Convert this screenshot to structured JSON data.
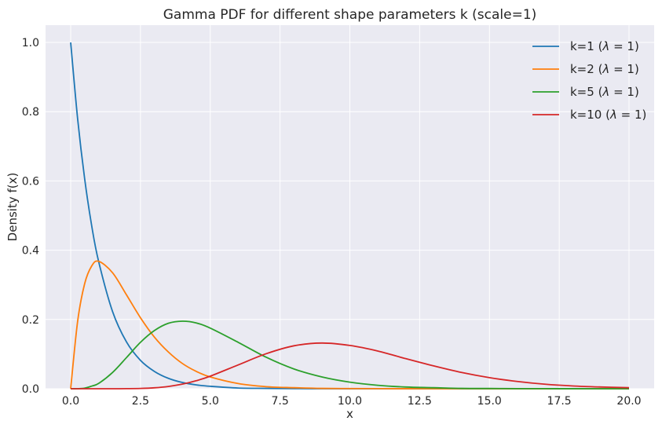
{
  "chart_data": {
    "type": "line",
    "title": "Gamma PDF for different shape parameters k (scale=1)",
    "xlabel": "x",
    "ylabel": "Density f(x)",
    "xlim": [
      -0.9,
      20.9
    ],
    "ylim": [
      0,
      1.05
    ],
    "xticks": [
      0,
      2.5,
      5,
      7.5,
      10,
      12.5,
      15,
      17.5,
      20
    ],
    "xtick_labels": [
      "0.0",
      "2.5",
      "5.0",
      "7.5",
      "10.0",
      "12.5",
      "15.0",
      "17.5",
      "20.0"
    ],
    "yticks": [
      0,
      0.2,
      0.4,
      0.6,
      0.8,
      1.0
    ],
    "ytick_labels": [
      "0.0",
      "0.2",
      "0.4",
      "0.6",
      "0.8",
      "1.0"
    ],
    "grid": true,
    "legend_position": "top-right",
    "x": [
      0,
      0.25,
      0.5,
      0.75,
      1,
      1.5,
      2,
      2.5,
      3,
      3.5,
      4,
      4.5,
      5,
      6,
      7,
      8,
      9,
      10,
      11,
      12,
      13,
      14,
      15,
      16,
      17,
      18,
      19,
      20
    ],
    "series": [
      {
        "name": "k=1 (λ = 1)",
        "label_main": "k=1 (",
        "label_lambda": "λ",
        "label_rest": " = 1)",
        "color": "#1f77b4",
        "values": [
          1.0,
          0.779,
          0.607,
          0.472,
          0.368,
          0.223,
          0.135,
          0.082,
          0.05,
          0.03,
          0.018,
          0.011,
          0.007,
          0.002,
          0.001,
          0.0003,
          0.0001,
          0.0,
          0.0,
          0.0,
          0.0,
          0.0,
          0.0,
          0.0,
          0.0,
          0.0,
          0.0,
          0.0
        ]
      },
      {
        "name": "k=2 (λ = 1)",
        "label_main": "k=2 (",
        "label_lambda": "λ",
        "label_rest": " = 1)",
        "color": "#ff7f0e",
        "values": [
          0.0,
          0.195,
          0.303,
          0.354,
          0.368,
          0.335,
          0.271,
          0.205,
          0.149,
          0.106,
          0.073,
          0.05,
          0.034,
          0.015,
          0.006,
          0.003,
          0.001,
          0.0005,
          0.0002,
          0.0001,
          0.0,
          0.0,
          0.0,
          0.0,
          0.0,
          0.0,
          0.0,
          0.0
        ]
      },
      {
        "name": "k=5 (λ = 1)",
        "label_main": "k=5 (",
        "label_lambda": "λ",
        "label_rest": " = 1)",
        "color": "#2ca02c",
        "values": [
          0.0,
          3e-05,
          0.0016,
          0.0075,
          0.0153,
          0.047,
          0.09,
          0.134,
          0.168,
          0.189,
          0.195,
          0.19,
          0.175,
          0.134,
          0.091,
          0.057,
          0.034,
          0.019,
          0.01,
          0.005,
          0.003,
          0.001,
          0.0007,
          0.0003,
          0.0002,
          0.0001,
          0.0,
          0.0
        ]
      },
      {
        "name": "k=10 (λ = 1)",
        "label_main": "k=10 (",
        "label_lambda": "λ",
        "label_rest": " = 1)",
        "color": "#d62728",
        "values": [
          0.0,
          0.0,
          0.0,
          0.0,
          1e-07,
          1e-05,
          0.0002,
          0.0008,
          0.0027,
          0.0066,
          0.0132,
          0.0232,
          0.0363,
          0.0688,
          0.101,
          0.124,
          0.132,
          0.125,
          0.109,
          0.087,
          0.066,
          0.047,
          0.032,
          0.021,
          0.013,
          0.008,
          0.005,
          0.003
        ]
      }
    ]
  }
}
